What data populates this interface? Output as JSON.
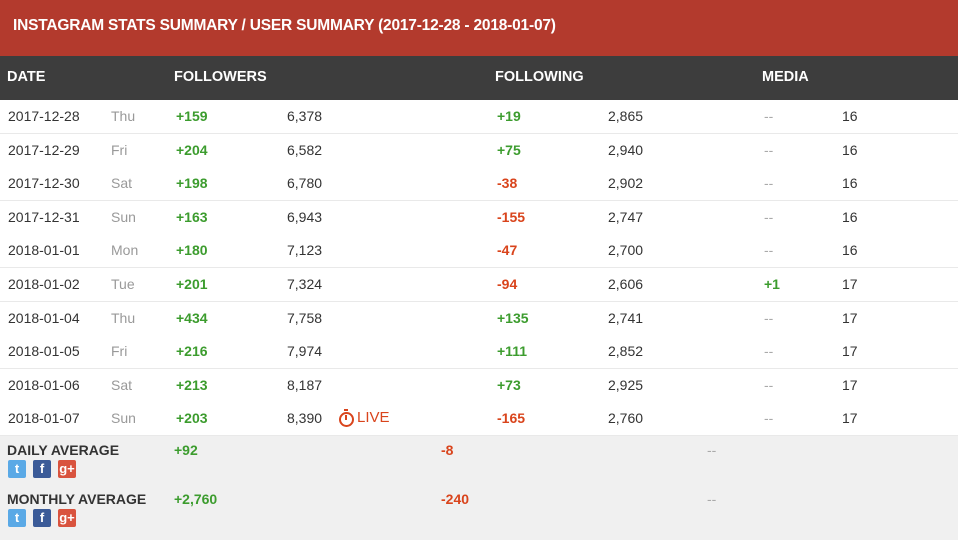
{
  "title": "INSTAGRAM STATS SUMMARY / USER SUMMARY (2017-12-28 - 2018-01-07)",
  "columns": {
    "date": "DATE",
    "followers": "FOLLOWERS",
    "following": "FOLLOWING",
    "media": "MEDIA"
  },
  "rows": [
    {
      "date": "2017-12-28",
      "day": "Thu",
      "followers_change": "+159",
      "followers": "6,378",
      "following_change": "+19",
      "following": "2,865",
      "media_change": "--",
      "media": "16"
    },
    {
      "date": "2017-12-29",
      "day": "Fri",
      "followers_change": "+204",
      "followers": "6,582",
      "following_change": "+75",
      "following": "2,940",
      "media_change": "--",
      "media": "16"
    },
    {
      "date": "2017-12-30",
      "day": "Sat",
      "followers_change": "+198",
      "followers": "6,780",
      "following_change": "-38",
      "following": "2,902",
      "media_change": "--",
      "media": "16"
    },
    {
      "date": "2017-12-31",
      "day": "Sun",
      "followers_change": "+163",
      "followers": "6,943",
      "following_change": "-155",
      "following": "2,747",
      "media_change": "--",
      "media": "16"
    },
    {
      "date": "2018-01-01",
      "day": "Mon",
      "followers_change": "+180",
      "followers": "7,123",
      "following_change": "-47",
      "following": "2,700",
      "media_change": "--",
      "media": "16"
    },
    {
      "date": "2018-01-02",
      "day": "Tue",
      "followers_change": "+201",
      "followers": "7,324",
      "following_change": "-94",
      "following": "2,606",
      "media_change": "+1",
      "media": "17"
    },
    {
      "date": "2018-01-04",
      "day": "Thu",
      "followers_change": "+434",
      "followers": "7,758",
      "following_change": "+135",
      "following": "2,741",
      "media_change": "--",
      "media": "17"
    },
    {
      "date": "2018-01-05",
      "day": "Fri",
      "followers_change": "+216",
      "followers": "7,974",
      "following_change": "+111",
      "following": "2,852",
      "media_change": "--",
      "media": "17"
    },
    {
      "date": "2018-01-06",
      "day": "Sat",
      "followers_change": "+213",
      "followers": "8,187",
      "following_change": "+73",
      "following": "2,925",
      "media_change": "--",
      "media": "17"
    },
    {
      "date": "2018-01-07",
      "day": "Sun",
      "followers_change": "+203",
      "followers": "8,390",
      "live": "LIVE",
      "following_change": "-165",
      "following": "2,760",
      "media_change": "--",
      "media": "17"
    }
  ],
  "daily_average": {
    "label": "DAILY AVERAGE",
    "followers": "+92",
    "following": "-8",
    "media": "--"
  },
  "monthly_average": {
    "label": "MONTHLY AVERAGE",
    "followers": "+2,760",
    "following": "-240",
    "media": "--"
  },
  "social_icons": [
    "twitter-icon",
    "facebook-icon",
    "google-plus-icon"
  ],
  "colors": {
    "title_bg": "#b33a2d",
    "header_bg": "#3d3d3d",
    "positive": "#3c9c2e",
    "negative": "#d9441c"
  }
}
